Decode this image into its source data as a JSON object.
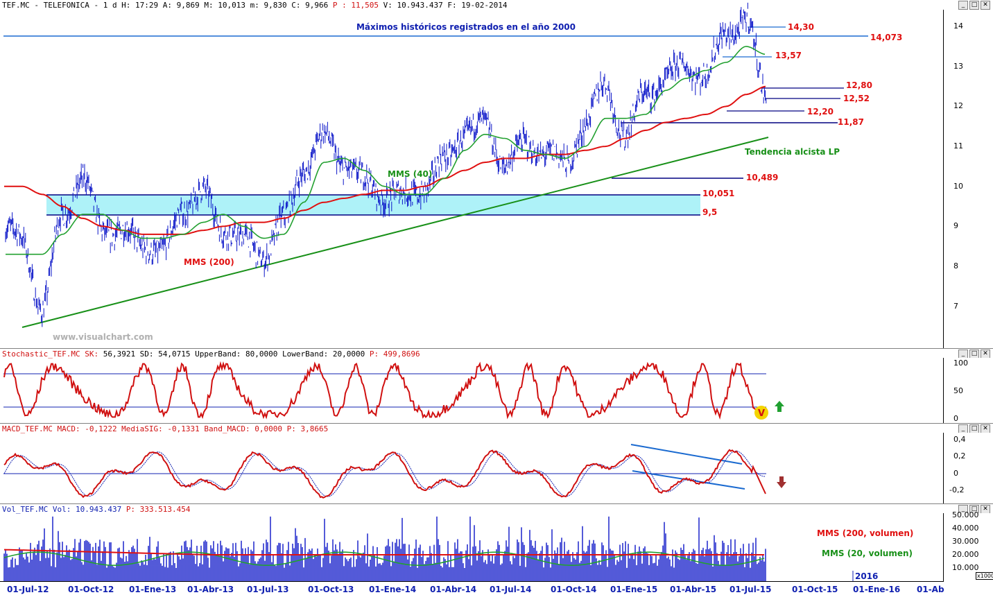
{
  "price_panel": {
    "header": {
      "prefix": "TEF.MC - TELEFONICA -   1 d H: 17:29 A: 9,869 M: 10,013 m: 9,830 C: 9,966 ",
      "p": "P : 11,505",
      "suffix": " V: 10.943.437 F: 19-02-2014"
    },
    "title_annotation": "Máximos históricos registrados en el año 2000",
    "watermark": "www.visualchart.com",
    "labels": {
      "mms40": "MMS (40)",
      "mms200": "MMS (200)",
      "trend": "Tendencia alcista LP"
    },
    "levels": [
      "14,30",
      "14,073",
      "13,57",
      "12,80",
      "12,52",
      "12,20",
      "11,87",
      "10,489",
      "10,051",
      "9,5"
    ],
    "colors": {
      "price": "#0a14c8",
      "mms40": "#22a030",
      "mms200": "#e01010",
      "trend": "#189018",
      "band": "#aef2f8",
      "level_text": "#e01010"
    }
  },
  "stoch_panel": {
    "header": {
      "prefix": "Stochastic_TEF.MC SK: ",
      "p1": "56,3921",
      "mid": " SD: 54,0715 UpperBand: 80,0000 LowerBand: 20,0000 ",
      "p": "P: 499,8696"
    },
    "yticks": [
      "100",
      "50",
      "0"
    ]
  },
  "macd_panel": {
    "header": {
      "prefix": "MACD_TEF.MC MACD: -0,1222 MediaSIG: -0,1331 Band_MACD: 0,0000 ",
      "p": "P: 3,8665"
    },
    "yticks": [
      "0,4",
      "0,2",
      "0",
      "-0,2"
    ]
  },
  "vol_panel": {
    "header": {
      "prefix": "Vol_TEF.MC Vol: 10.943.437 ",
      "p": "P: 333.513.454"
    },
    "yticks": [
      "50.000",
      "40.000",
      "30.000",
      "20.000",
      "10.000"
    ],
    "multiplier": "x1000",
    "labels": {
      "mms200v": "MMS (200, volumen)",
      "mms20v": "MMS (20, volumen)"
    },
    "year_marker": "2016"
  },
  "xaxis": [
    "01-Jul-12",
    "01-Oct-12",
    "01-Ene-13",
    "01-Abr-13",
    "01-Jul-13",
    "01-Oct-13",
    "01-Ene-14",
    "01-Abr-14",
    "01-Jul-14",
    "01-Oct-14",
    "01-Ene-15",
    "01-Abr-15",
    "01-Jul-15",
    "01-Oct-15",
    "01-Ene-16",
    "01-Ab"
  ],
  "chart_data": {
    "type": "line",
    "x_dates": [
      "2012-07-01",
      "2012-08-01",
      "2012-09-01",
      "2012-10-01",
      "2012-11-01",
      "2012-12-01",
      "2013-01-01",
      "2013-02-01",
      "2013-03-01",
      "2013-04-01",
      "2013-05-01",
      "2013-06-01",
      "2013-07-01",
      "2013-08-01",
      "2013-09-01",
      "2013-10-01",
      "2013-11-01",
      "2013-12-01",
      "2014-01-01",
      "2014-02-01",
      "2014-03-01",
      "2014-04-01",
      "2014-05-01",
      "2014-06-01",
      "2014-07-01",
      "2014-08-01",
      "2014-09-01",
      "2014-10-01",
      "2014-11-01",
      "2014-12-01",
      "2015-01-01",
      "2015-02-01",
      "2015-03-01",
      "2015-04-01",
      "2015-05-01",
      "2015-06-01",
      "2015-07-01",
      "2015-08-01"
    ],
    "series": [
      {
        "values": [
          8.8,
          6.8,
          9.4,
          10.1,
          9.0,
          8.8,
          8.6,
          8.3,
          9.5,
          9.8,
          9.0,
          8.6,
          8.3,
          9.1,
          10.5,
          11.2,
          10.6,
          10.1,
          9.8,
          9.7,
          10.0,
          10.6,
          11.4,
          11.5,
          10.6,
          11.0,
          10.9,
          10.5,
          11.6,
          12.5,
          11.3,
          12.3,
          12.7,
          13.0,
          12.8,
          13.8,
          14.2,
          12.2
        ]
      },
      {
        "name": "MMS (40)",
        "values": [
          8.3,
          8.3,
          8.8,
          9.3,
          9.3,
          8.9,
          8.7,
          8.7,
          8.8,
          9.1,
          9.3,
          9.0,
          8.7,
          8.8,
          9.6,
          10.6,
          10.7,
          10.4,
          10.0,
          9.8,
          9.8,
          10.2,
          10.9,
          11.3,
          11.2,
          10.9,
          10.8,
          10.7,
          11.0,
          11.7,
          11.7,
          11.8,
          12.4,
          12.7,
          12.9,
          13.1,
          13.5,
          13.3
        ]
      },
      {
        "name": "MMS (200)",
        "values": [
          10.0,
          9.8,
          9.5,
          9.2,
          9.0,
          8.9,
          8.8,
          8.8,
          8.8,
          8.9,
          9.0,
          9.1,
          9.1,
          9.2,
          9.4,
          9.6,
          9.7,
          9.8,
          9.9,
          9.9,
          10.0,
          10.2,
          10.4,
          10.6,
          10.7,
          10.7,
          10.8,
          10.8,
          10.9,
          11.0,
          11.2,
          11.4,
          11.6,
          11.7,
          11.8,
          12.0,
          12.3,
          12.5
        ]
      }
    ],
    "yrange": [
      6.3,
      14.8
    ],
    "grid": false
  }
}
